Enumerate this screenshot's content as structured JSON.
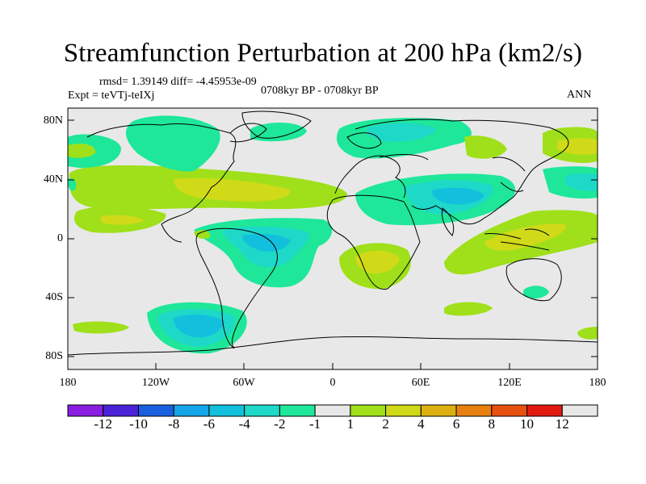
{
  "title": "Streamfunction Perturbation at 200 hPa (km2/s)",
  "stats": "rmsd= 1.39149 diff= -4.45953e-09",
  "expt": "Expt = teVTj-teIXj",
  "period": "0708kyr BP - 0708kyr BP",
  "season": "ANN",
  "lat_labels": [
    "80N",
    "40N",
    "0",
    "40S",
    "80S"
  ],
  "lon_labels": [
    "180",
    "120W",
    "60W",
    "0",
    "60E",
    "120E",
    "180"
  ],
  "colorbar": {
    "labels": [
      "-12",
      "-10",
      "-8",
      "-6",
      "-4",
      "-2",
      "-1",
      "1",
      "2",
      "4",
      "6",
      "8",
      "10",
      "12"
    ],
    "colors": [
      "#8a1ee0",
      "#4a23d8",
      "#1a5fe0",
      "#14a6e8",
      "#12c0de",
      "#1ed8c8",
      "#1ee79a",
      "#e8e8e8",
      "#9fe01a",
      "#d0da18",
      "#dcb010",
      "#e8800f",
      "#e8500f",
      "#e21a10",
      "#e8e8e8"
    ]
  },
  "colors": {
    "neutral": "#e8e8e8",
    "neg1": "#1ee79a",
    "neg2": "#1ed8c8",
    "neg4": "#12c0de",
    "pos1": "#9fe01a",
    "pos2": "#d0da18"
  }
}
